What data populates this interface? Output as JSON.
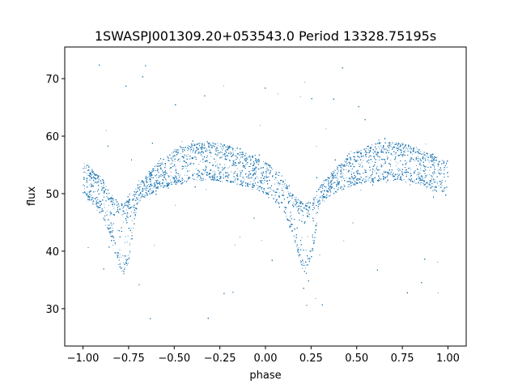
{
  "chart_data": {
    "type": "scatter",
    "title": "1SWASPJ001309.20+053543.0 Period 13328.75195s",
    "xlabel": "phase",
    "ylabel": "flux",
    "xlim": [
      -1.1,
      1.1
    ],
    "ylim": [
      23.5,
      75.5
    ],
    "xticks": [
      -1.0,
      -0.75,
      -0.5,
      -0.25,
      0.0,
      0.25,
      0.5,
      0.75,
      1.0
    ],
    "xtick_labels": [
      "−1.00",
      "−0.75",
      "−0.50",
      "−0.25",
      "0.00",
      "0.25",
      "0.50",
      "0.75",
      "1.00"
    ],
    "yticks": [
      30,
      40,
      50,
      60,
      70
    ],
    "ytick_labels": [
      "30",
      "40",
      "50",
      "60",
      "70"
    ],
    "grid": false,
    "point_color": "#1f77b4",
    "point_count": 14000,
    "series": [
      {
        "x": [
          -1.0,
          -0.9,
          -0.85,
          -0.8,
          -0.78,
          -0.75,
          -0.7,
          -0.6,
          -0.5,
          -0.4,
          -0.3,
          -0.25,
          -0.2,
          -0.1,
          0.0,
          0.1,
          0.15,
          0.2,
          0.22,
          0.25,
          0.3,
          0.4,
          0.5,
          0.6,
          0.7,
          0.75,
          0.8,
          0.9,
          1.0
        ],
        "upper_envelope": [
          55.5,
          53.0,
          50.0,
          48.5,
          48.3,
          49.0,
          51.5,
          55.0,
          57.5,
          58.8,
          59.0,
          58.8,
          58.3,
          57.0,
          55.5,
          53.0,
          50.0,
          48.5,
          48.3,
          49.0,
          51.5,
          55.0,
          57.5,
          58.8,
          59.0,
          58.8,
          58.3,
          57.0,
          55.5
        ],
        "lower_envelope": [
          49.5,
          47.0,
          42.5,
          37.0,
          35.8,
          38.0,
          48.5,
          50.5,
          51.5,
          52.0,
          52.3,
          52.3,
          52.0,
          51.0,
          50.0,
          47.0,
          42.5,
          37.0,
          35.8,
          38.0,
          48.5,
          50.5,
          51.5,
          52.0,
          52.3,
          52.3,
          52.0,
          51.0,
          49.5
        ]
      }
    ]
  }
}
